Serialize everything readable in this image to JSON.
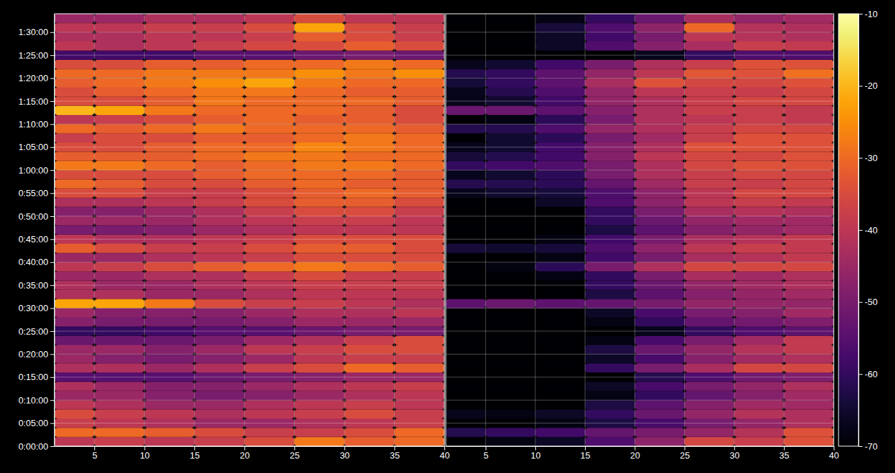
{
  "chart_data": {
    "type": "heatmap",
    "grid": true,
    "ylim": [
      0,
      94
    ],
    "yticks": [
      {
        "value": 0,
        "label": "0:00:00"
      },
      {
        "value": 5,
        "label": "0:05:00"
      },
      {
        "value": 10,
        "label": "0:10:00"
      },
      {
        "value": 15,
        "label": "0:15:00"
      },
      {
        "value": 20,
        "label": "0:20:00"
      },
      {
        "value": 25,
        "label": "0:25:00"
      },
      {
        "value": 30,
        "label": "0:30:00"
      },
      {
        "value": 35,
        "label": "0:35:00"
      },
      {
        "value": 40,
        "label": "0:40:00"
      },
      {
        "value": 45,
        "label": "0:45:00"
      },
      {
        "value": 50,
        "label": "0:50:00"
      },
      {
        "value": 55,
        "label": "0:55:00"
      },
      {
        "value": 60,
        "label": "1:00:00"
      },
      {
        "value": 65,
        "label": "1:05:00"
      },
      {
        "value": 70,
        "label": "1:10:00"
      },
      {
        "value": 75,
        "label": "1:15:00"
      },
      {
        "value": 80,
        "label": "1:20:00"
      },
      {
        "value": 85,
        "label": "1:25:00"
      },
      {
        "value": 90,
        "label": "1:30:00"
      }
    ],
    "y_edges": [
      0,
      2,
      4,
      6,
      8,
      10,
      12,
      14,
      16,
      18,
      20,
      22,
      24,
      26,
      28,
      30,
      32,
      34,
      36,
      38,
      40,
      42,
      44,
      46,
      48,
      50,
      52,
      54,
      56,
      58,
      60,
      62,
      64,
      66,
      68,
      70,
      72,
      74,
      76,
      78,
      80,
      82,
      84,
      86,
      88,
      90,
      92,
      94
    ],
    "colorbar": {
      "lim": [
        -70,
        -10
      ],
      "ticks": [
        -70,
        -60,
        -50,
        -40,
        -30,
        -20,
        -10
      ]
    },
    "panels": [
      {
        "xlim": [
          1,
          40
        ],
        "xticks": [
          5,
          10,
          15,
          20,
          25,
          30,
          35,
          40
        ],
        "x_edges": [
          1,
          5,
          10,
          15,
          20,
          25,
          30,
          35,
          40
        ],
        "values": [
          [
            -40,
            -38,
            -40,
            -38,
            -35,
            -28,
            -32,
            -30
          ],
          [
            -30,
            -30,
            -32,
            -35,
            -38,
            -38,
            -35,
            -30
          ],
          [
            -38,
            -40,
            -42,
            -45,
            -45,
            -42,
            -40,
            -38
          ],
          [
            -35,
            -38,
            -40,
            -42,
            -40,
            -38,
            -35,
            -38
          ],
          [
            -40,
            -42,
            -45,
            -45,
            -42,
            -40,
            -38,
            -40
          ],
          [
            -45,
            -45,
            -48,
            -50,
            -48,
            -45,
            -42,
            -40
          ],
          [
            -42,
            -45,
            -48,
            -48,
            -45,
            -42,
            -40,
            -38
          ],
          [
            -55,
            -55,
            -55,
            -52,
            -50,
            -48,
            -45,
            -45
          ],
          [
            -42,
            -42,
            -45,
            -42,
            -38,
            -35,
            -30,
            -32
          ],
          [
            -45,
            -48,
            -50,
            -48,
            -45,
            -40,
            -38,
            -38
          ],
          [
            -45,
            -45,
            -48,
            -45,
            -40,
            -38,
            -35,
            -35
          ],
          [
            -52,
            -52,
            -52,
            -50,
            -45,
            -42,
            -38,
            -35
          ],
          [
            -60,
            -60,
            -58,
            -55,
            -55,
            -52,
            -50,
            -50
          ],
          [
            -48,
            -50,
            -50,
            -50,
            -48,
            -45,
            -45,
            -45
          ],
          [
            -45,
            -48,
            -48,
            -48,
            -45,
            -42,
            -42,
            -40
          ],
          [
            -22,
            -22,
            -28,
            -35,
            -38,
            -38,
            -40,
            -42
          ],
          [
            -42,
            -42,
            -45,
            -45,
            -42,
            -40,
            -40,
            -40
          ],
          [
            -42,
            -45,
            -45,
            -42,
            -40,
            -38,
            -38,
            -38
          ],
          [
            -45,
            -45,
            -42,
            -42,
            -38,
            -35,
            -38,
            -38
          ],
          [
            -40,
            -38,
            -35,
            -32,
            -30,
            -28,
            -30,
            -32
          ],
          [
            -45,
            -45,
            -42,
            -40,
            -38,
            -35,
            -35,
            -35
          ],
          [
            -32,
            -35,
            -38,
            -38,
            -35,
            -32,
            -32,
            -35
          ],
          [
            -40,
            -42,
            -42,
            -40,
            -38,
            -35,
            -35,
            -35
          ],
          [
            -50,
            -50,
            -48,
            -45,
            -42,
            -40,
            -40,
            -40
          ],
          [
            -45,
            -45,
            -45,
            -42,
            -40,
            -38,
            -38,
            -40
          ],
          [
            -48,
            -48,
            -45,
            -42,
            -38,
            -35,
            -35,
            -38
          ],
          [
            -42,
            -42,
            -40,
            -38,
            -35,
            -32,
            -32,
            -35
          ],
          [
            -35,
            -35,
            -38,
            -38,
            -35,
            -32,
            -30,
            -32
          ],
          [
            -30,
            -32,
            -35,
            -35,
            -32,
            -30,
            -32,
            -32
          ],
          [
            -35,
            -35,
            -35,
            -32,
            -30,
            -30,
            -30,
            -32
          ],
          [
            -28,
            -28,
            -30,
            -32,
            -30,
            -28,
            -28,
            -30
          ],
          [
            -32,
            -32,
            -32,
            -30,
            -28,
            -28,
            -30,
            -30
          ],
          [
            -35,
            -35,
            -32,
            -30,
            -30,
            -26,
            -28,
            -30
          ],
          [
            -38,
            -35,
            -35,
            -32,
            -32,
            -30,
            -28,
            -30
          ],
          [
            -30,
            -32,
            -30,
            -28,
            -30,
            -30,
            -30,
            -32
          ],
          [
            -40,
            -38,
            -35,
            -32,
            -30,
            -32,
            -32,
            -35
          ],
          [
            -20,
            -22,
            -28,
            -30,
            -30,
            -30,
            -32,
            -35
          ],
          [
            -35,
            -35,
            -32,
            -28,
            -30,
            -30,
            -30,
            -32
          ],
          [
            -35,
            -32,
            -30,
            -28,
            -28,
            -30,
            -32,
            -32
          ],
          [
            -32,
            -30,
            -28,
            -25,
            -22,
            -28,
            -30,
            -30
          ],
          [
            -30,
            -30,
            -28,
            -28,
            -28,
            -25,
            -28,
            -25
          ],
          [
            -35,
            -35,
            -32,
            -32,
            -30,
            -30,
            -28,
            -30
          ],
          [
            -58,
            -58,
            -58,
            -55,
            -55,
            -52,
            -50,
            -52
          ],
          [
            -40,
            -42,
            -40,
            -38,
            -36,
            -35,
            -32,
            -35
          ],
          [
            -42,
            -42,
            -40,
            -40,
            -38,
            -32,
            -35,
            -38
          ],
          [
            -40,
            -40,
            -38,
            -38,
            -35,
            -22,
            -35,
            -38
          ],
          [
            -45,
            -45,
            -42,
            -42,
            -40,
            -35,
            -40,
            -40
          ]
        ]
      },
      {
        "xlim": [
          1,
          40
        ],
        "xticks": [
          5,
          10,
          15,
          20,
          25,
          30,
          35,
          40
        ],
        "x_edges": [
          1,
          5,
          10,
          15,
          20,
          25,
          30,
          35,
          40
        ],
        "values": [
          [
            -70,
            -68,
            -66,
            -56,
            -47,
            -36,
            -38,
            -34
          ],
          [
            -62,
            -60,
            -58,
            -53,
            -50,
            -46,
            -41,
            -34
          ],
          [
            -70,
            -70,
            -68,
            -63,
            -57,
            -50,
            -46,
            -42
          ],
          [
            -67,
            -68,
            -66,
            -60,
            -52,
            -46,
            -41,
            -42
          ],
          [
            -70,
            -70,
            -70,
            -63,
            -54,
            -48,
            -44,
            -44
          ],
          [
            -70,
            -70,
            -70,
            -68,
            -60,
            -53,
            -48,
            -44
          ],
          [
            -70,
            -70,
            -70,
            -66,
            -57,
            -50,
            -46,
            -42
          ],
          [
            -70,
            -70,
            -70,
            -70,
            -62,
            -56,
            -51,
            -49
          ],
          [
            -70,
            -70,
            -70,
            -60,
            -50,
            -43,
            -36,
            -36
          ],
          [
            -70,
            -70,
            -70,
            -66,
            -57,
            -48,
            -44,
            -42
          ],
          [
            -70,
            -70,
            -70,
            -63,
            -52,
            -46,
            -41,
            -39
          ],
          [
            -70,
            -70,
            -70,
            -68,
            -57,
            -50,
            -44,
            -39
          ],
          [
            -70,
            -70,
            -70,
            -70,
            -67,
            -60,
            -56,
            -54
          ],
          [
            -70,
            -70,
            -70,
            -68,
            -60,
            -53,
            -51,
            -49
          ],
          [
            -70,
            -70,
            -70,
            -66,
            -57,
            -50,
            -48,
            -44
          ],
          [
            -54,
            -52,
            -54,
            -53,
            -50,
            -46,
            -46,
            -46
          ],
          [
            -70,
            -70,
            -70,
            -63,
            -54,
            -48,
            -46,
            -44
          ],
          [
            -70,
            -70,
            -70,
            -60,
            -52,
            -46,
            -44,
            -42
          ],
          [
            -70,
            -70,
            -68,
            -60,
            -50,
            -43,
            -44,
            -42
          ],
          [
            -70,
            -68,
            -61,
            -50,
            -42,
            -36,
            -36,
            -36
          ],
          [
            -70,
            -70,
            -68,
            -58,
            -50,
            -43,
            -41,
            -39
          ],
          [
            -64,
            -65,
            -64,
            -56,
            -47,
            -40,
            -38,
            -39
          ],
          [
            -70,
            -70,
            -68,
            -58,
            -50,
            -43,
            -41,
            -39
          ],
          [
            -70,
            -70,
            -70,
            -63,
            -54,
            -48,
            -46,
            -44
          ],
          [
            -70,
            -70,
            -70,
            -60,
            -52,
            -46,
            -44,
            -44
          ],
          [
            -70,
            -70,
            -70,
            -60,
            -50,
            -43,
            -41,
            -42
          ],
          [
            -70,
            -70,
            -66,
            -56,
            -47,
            -40,
            -38,
            -39
          ],
          [
            -67,
            -65,
            -64,
            -56,
            -47,
            -40,
            -36,
            -36
          ],
          [
            -62,
            -62,
            -61,
            -53,
            -44,
            -38,
            -38,
            -36
          ],
          [
            -67,
            -65,
            -61,
            -50,
            -42,
            -38,
            -36,
            -36
          ],
          [
            -60,
            -58,
            -56,
            -50,
            -42,
            -36,
            -34,
            -34
          ],
          [
            -64,
            -62,
            -58,
            -48,
            -40,
            -36,
            -36,
            -34
          ],
          [
            -67,
            -65,
            -58,
            -48,
            -42,
            -34,
            -34,
            -34
          ],
          [
            -70,
            -65,
            -61,
            -50,
            -44,
            -38,
            -34,
            -34
          ],
          [
            -62,
            -62,
            -56,
            -46,
            -42,
            -38,
            -36,
            -36
          ],
          [
            -70,
            -68,
            -61,
            -50,
            -42,
            -40,
            -38,
            -39
          ],
          [
            -52,
            -52,
            -54,
            -48,
            -42,
            -38,
            -38,
            -39
          ],
          [
            -67,
            -65,
            -58,
            -46,
            -42,
            -38,
            -36,
            -36
          ],
          [
            -67,
            -62,
            -56,
            -46,
            -40,
            -38,
            -38,
            -36
          ],
          [
            -64,
            -60,
            -54,
            -43,
            -34,
            -36,
            -36,
            -34
          ],
          [
            -62,
            -60,
            -54,
            -46,
            -40,
            -33,
            -34,
            -29
          ],
          [
            -67,
            -65,
            -58,
            -50,
            -42,
            -38,
            -34,
            -34
          ],
          [
            -70,
            -70,
            -70,
            -70,
            -67,
            -60,
            -56,
            -56
          ],
          [
            -70,
            -70,
            -66,
            -56,
            -48,
            -43,
            -38,
            -39
          ],
          [
            -70,
            -70,
            -66,
            -58,
            -50,
            -40,
            -41,
            -42
          ],
          [
            -70,
            -70,
            -64,
            -56,
            -47,
            -30,
            -41,
            -42
          ],
          [
            -70,
            -70,
            -68,
            -60,
            -52,
            -43,
            -46,
            -44
          ]
        ]
      }
    ]
  }
}
